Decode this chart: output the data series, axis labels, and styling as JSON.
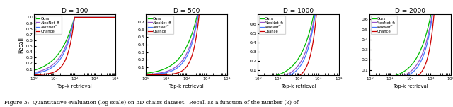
{
  "titles": [
    "D = 100",
    "D = 500",
    "D = 1000",
    "D = 2000"
  ],
  "xlabel": "Top-k retrieval",
  "ylabel": "Recall",
  "legend_labels": [
    "Ours",
    "AlexNet_ft",
    "AlexNet",
    "Chance"
  ],
  "line_colors": [
    "#00bb00",
    "#9955cc",
    "#4477ff",
    "#cc0000"
  ],
  "caption": "Figure 3:  Quantitative evaluation (log scale) on 3D chairs dataset.  Recall as a function of the number (k) of",
  "D_values": [
    100,
    500,
    1000,
    2000
  ],
  "xlim": [
    1,
    10000
  ],
  "ylim_per_D": {
    "100": [
      0.0,
      1.05
    ],
    "500": [
      0.0,
      0.8
    ],
    "1000": [
      0.05,
      0.7
    ],
    "2000": [
      0.05,
      0.65
    ]
  },
  "yticks_per_D": {
    "100": [
      0.1,
      0.2,
      0.3,
      0.4,
      0.5,
      0.6,
      0.7,
      0.8,
      0.9,
      1.0
    ],
    "500": [
      0.1,
      0.2,
      0.3,
      0.4,
      0.5,
      0.6,
      0.7
    ],
    "1000": [
      0.1,
      0.2,
      0.3,
      0.4,
      0.5,
      0.6
    ],
    "2000": [
      0.1,
      0.2,
      0.3,
      0.4,
      0.5,
      0.6
    ]
  },
  "curve_exponents": {
    "ours": {
      "100": 0.55,
      "500": 0.62,
      "1000": 0.65,
      "2000": 0.67
    },
    "alexnet_ft": {
      "100": 0.7,
      "500": 0.8,
      "1000": 0.82,
      "2000": 0.84
    },
    "alexnet": {
      "100": 0.8,
      "500": 0.9,
      "1000": 0.93,
      "2000": 0.95
    },
    "chance": {
      "100": 1.3,
      "500": 1.4,
      "1000": 1.45,
      "2000": 1.48
    }
  }
}
